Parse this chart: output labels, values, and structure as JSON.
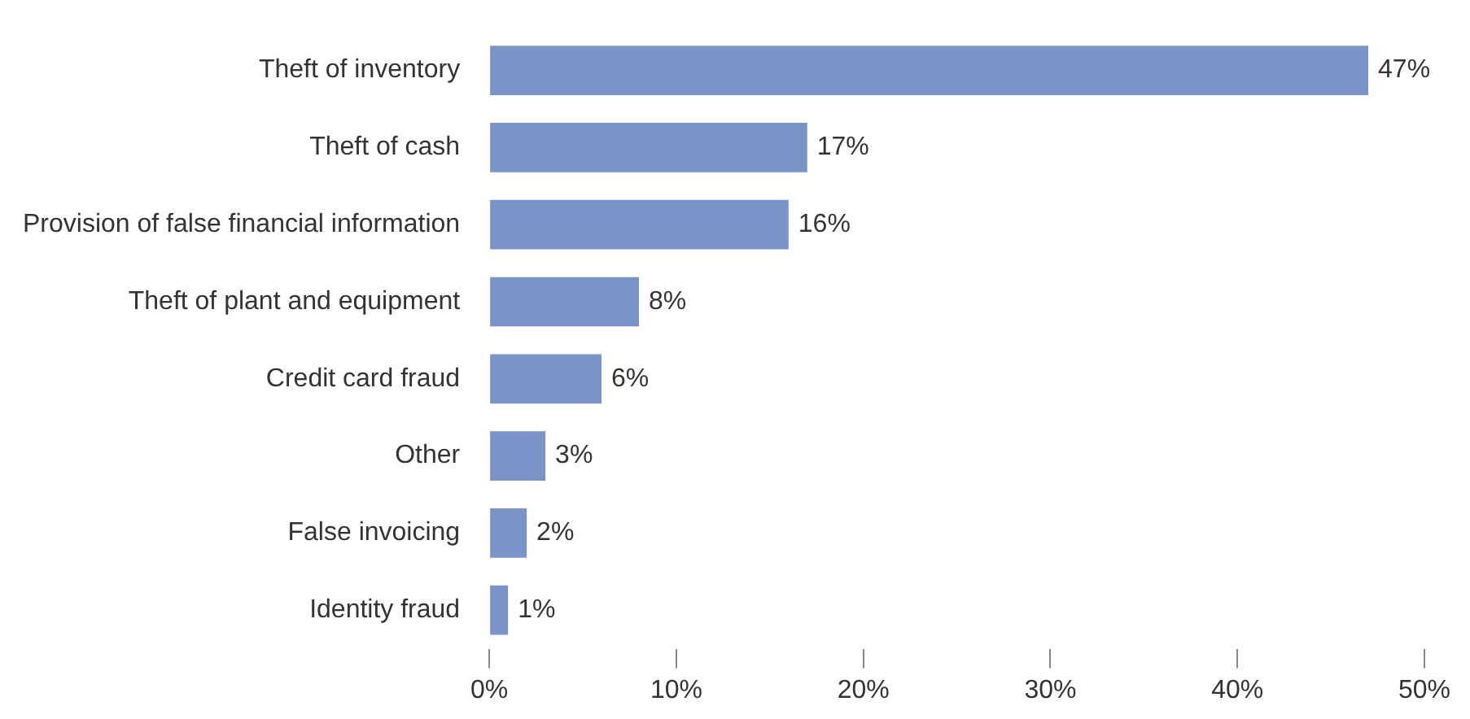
{
  "chart_data": {
    "type": "bar",
    "orientation": "horizontal",
    "categories": [
      "Theft of inventory",
      "Theft of cash",
      "Provision of false financial information",
      "Theft of plant and equipment",
      "Credit card fraud",
      "Other",
      "False invoicing",
      "Identity fraud"
    ],
    "values": [
      47,
      17,
      16,
      8,
      6,
      3,
      2,
      1
    ],
    "value_labels": [
      "47%",
      "17%",
      "16%",
      "8%",
      "6%",
      "3%",
      "2%",
      "1%"
    ],
    "color": "#7b93c6",
    "xlim": [
      0,
      50
    ],
    "xticks": [
      {
        "value": 0,
        "label": "0%"
      },
      {
        "value": 10,
        "label": "10%"
      },
      {
        "value": 20,
        "label": "20%"
      },
      {
        "value": 30,
        "label": "30%"
      },
      {
        "value": 40,
        "label": "40%"
      },
      {
        "value": 50,
        "label": "50%"
      }
    ],
    "grid": false,
    "legend": false
  }
}
